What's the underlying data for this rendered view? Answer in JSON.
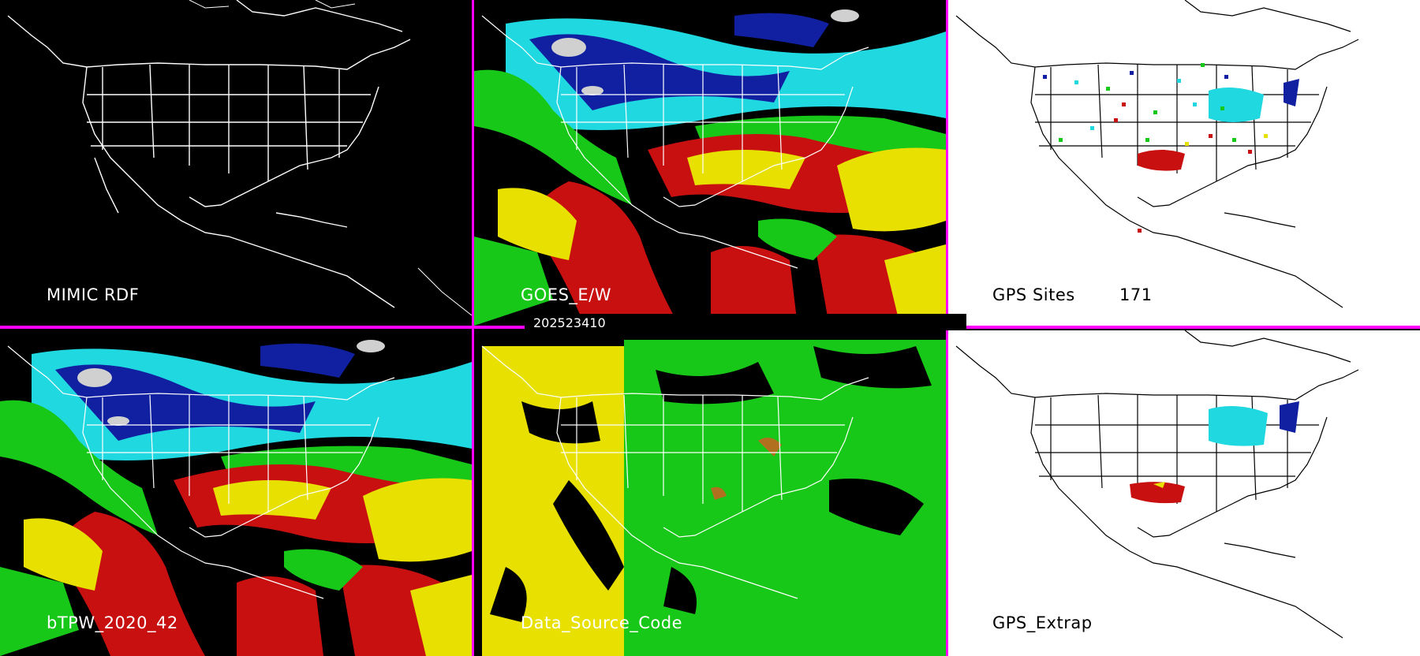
{
  "panels": [
    {
      "id": "mimic",
      "label": "MIMIC RDF"
    },
    {
      "id": "goes",
      "label": "GOES_E/W"
    },
    {
      "id": "gps-sites",
      "label": "GPS Sites",
      "count": "171"
    },
    {
      "id": "btpw",
      "label": "bTPW_2020_42"
    },
    {
      "id": "data-source",
      "label": "Data_Source_Code"
    },
    {
      "id": "gps-extrap",
      "label": "GPS_Extrap"
    }
  ],
  "timestamp": "202523410",
  "colors": {
    "separator": "#ff00ff",
    "blue": "#1020a0",
    "cyan": "#20d8e0",
    "green": "#18c818",
    "yellow": "#e8e000",
    "red": "#c81010",
    "ice": "#d0d0d0"
  }
}
